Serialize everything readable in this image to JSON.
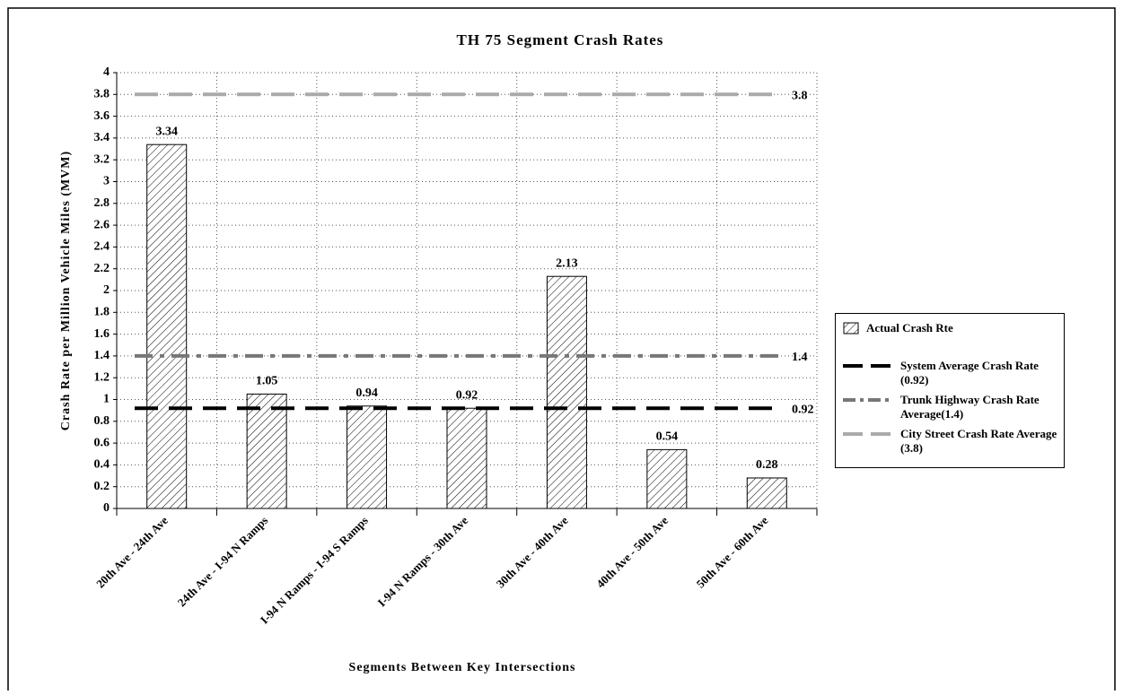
{
  "chart_data": {
    "type": "bar",
    "title": "TH 75 Segment Crash Rates",
    "xlabel": "Segments Between Key Intersections",
    "ylabel": "Crash Rate per Million Vehicle Miles (MVM)",
    "categories": [
      "20th Ave - 24th Ave",
      "24th Ave - I-94 N Ramps",
      "I-94 N Ramps - I-94 S Ramps",
      "I-94 N Ramps - 30th Ave",
      "30th Ave - 40th Ave",
      "40th Ave - 50th Ave",
      "50th Ave - 60th Ave"
    ],
    "series": [
      {
        "name": "Actual Crash Rte",
        "color": "#000000",
        "values": [
          3.34,
          1.05,
          0.94,
          0.92,
          2.13,
          0.54,
          0.28
        ]
      }
    ],
    "reference_lines": [
      {
        "name": "System Average Crash Rate (0.92)",
        "value": 0.92,
        "color": "#000000",
        "style": "dash"
      },
      {
        "name": "Trunk Highway Crash Rate Average(1.4)",
        "value": 1.4,
        "color": "#777777",
        "style": "dashdot"
      },
      {
        "name": "City Street Crash Rate Average (3.8)",
        "value": 3.8,
        "color": "#aaaaaa",
        "style": "dash"
      }
    ],
    "ylim": [
      0,
      4
    ],
    "yticks": [
      0,
      0.2,
      0.4,
      0.6,
      0.8,
      1,
      1.2,
      1.4,
      1.6,
      1.8,
      2,
      2.2,
      2.4,
      2.6,
      2.8,
      3,
      3.2,
      3.4,
      3.6,
      3.8,
      4
    ],
    "grid": true
  }
}
